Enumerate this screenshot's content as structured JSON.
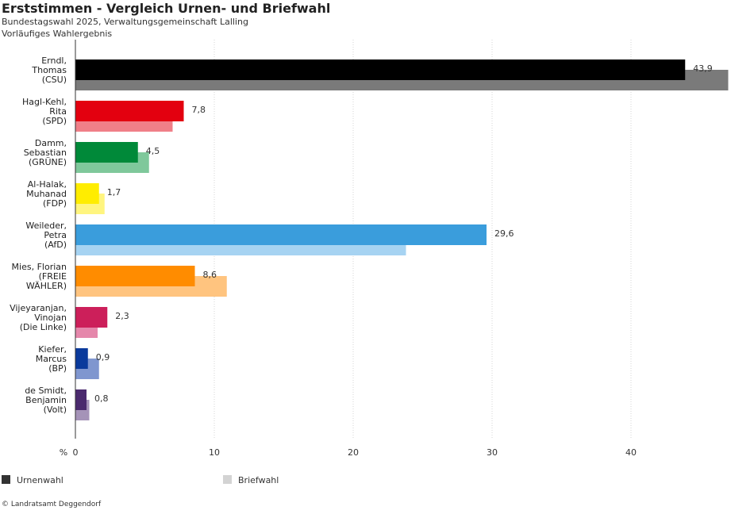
{
  "title": "Erststimmen - Vergleich Urnen- und Briefwahl",
  "subtitle_1": "Bundestagswahl 2025, Verwaltungsgemeinschaft Lalling",
  "subtitle_2": "Vorläufiges Wahlergebnis",
  "source": "© Landratsamt Deggendorf",
  "legend": {
    "urnen_label": "Urnenwahl",
    "brief_label": "Briefwahl",
    "urnen_color": "#333333",
    "brief_color": "#d3d3d3"
  },
  "chart_data": {
    "type": "bar",
    "orientation": "horizontal",
    "x_unit_label": "%",
    "xlim": [
      0,
      47
    ],
    "x_ticks": [
      0,
      10,
      20,
      30,
      40
    ],
    "grid": true,
    "legend_position": "bottom",
    "categories": [
      [
        "Erndl,",
        "Thomas",
        "(CSU)"
      ],
      [
        "Hagl-Kehl,",
        "Rita",
        "(SPD)"
      ],
      [
        "Damm,",
        "Sebastian",
        "(GRÜNE)"
      ],
      [
        "Al-Halak,",
        "Muhanad",
        "(FDP)"
      ],
      [
        "Weileder,",
        "Petra",
        "(AfD)"
      ],
      [
        "Mies, Florian",
        "(FREIE",
        "WÄHLER)"
      ],
      [
        "Vijeyaranjan,",
        "Vinojan",
        "(Die Linke)"
      ],
      [
        "Kiefer,",
        "Marcus",
        "(BP)"
      ],
      [
        "de Smidt,",
        "Benjamin",
        "(Volt)"
      ]
    ],
    "series": [
      {
        "name": "Urnenwahl",
        "values": [
          43.9,
          7.8,
          4.5,
          1.7,
          29.6,
          8.6,
          2.3,
          0.9,
          0.8
        ],
        "labels": [
          "43,9",
          "7,8",
          "4,5",
          "1,7",
          "29,6",
          "8,6",
          "2,3",
          "0,9",
          "0,8"
        ],
        "colors": [
          "#000000",
          "#e3000f",
          "#008939",
          "#ffed00",
          "#3a9ddc",
          "#ff8c00",
          "#cc1f5a",
          "#0a3a9c",
          "#4b2a6e"
        ]
      },
      {
        "name": "Briefwahl",
        "values": [
          47.0,
          7.0,
          5.3,
          2.1,
          23.8,
          10.9,
          1.6,
          1.7,
          1.0
        ],
        "colors": [
          "#7a7a7a",
          "#f07f88",
          "#7fc89b",
          "#fff57f",
          "#a6d3f2",
          "#ffc47f",
          "#e587ab",
          "#7f96cf",
          "#a593b8"
        ]
      }
    ]
  }
}
